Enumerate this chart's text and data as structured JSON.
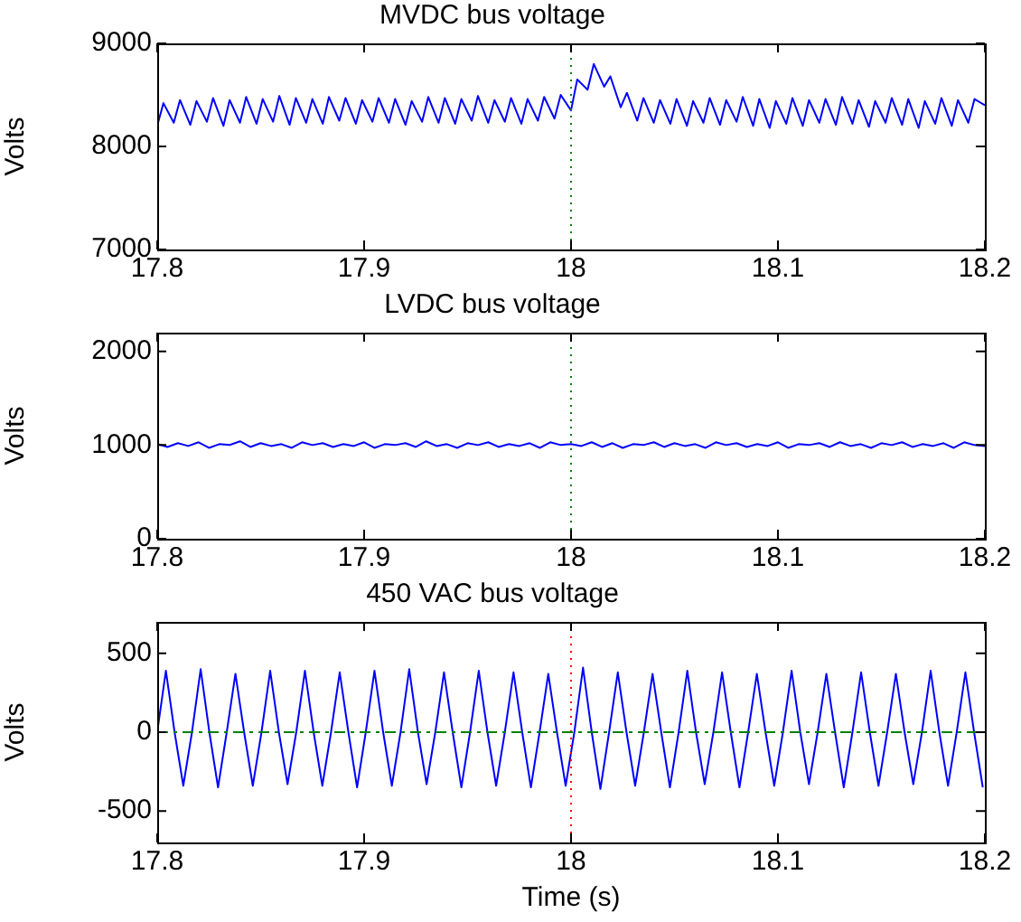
{
  "chart_data": [
    {
      "type": "line",
      "title": "MVDC bus voltage",
      "ylabel": "Volts",
      "xlim": [
        17.8,
        18.2
      ],
      "xticks": [
        17.8,
        17.9,
        18,
        18.1,
        18.2
      ],
      "ylim": [
        7000,
        9000
      ],
      "yticks": [
        7000,
        8000,
        9000
      ],
      "grid": false,
      "legend": false,
      "marker": "none",
      "line_style": "solid",
      "ref_lines": [
        {
          "axis": "x",
          "value": 18,
          "color": "#008000",
          "line_style": "dotted"
        }
      ],
      "series": [
        {
          "color": "#0000ff",
          "x": [
            17.8,
            17.803,
            17.808,
            17.811,
            17.816,
            17.819,
            17.824,
            17.827,
            17.832,
            17.835,
            17.84,
            17.843,
            17.848,
            17.851,
            17.856,
            17.859,
            17.864,
            17.867,
            17.872,
            17.875,
            17.88,
            17.883,
            17.888,
            17.891,
            17.896,
            17.899,
            17.904,
            17.907,
            17.912,
            17.915,
            17.92,
            17.923,
            17.928,
            17.931,
            17.936,
            17.939,
            17.944,
            17.947,
            17.952,
            17.955,
            17.96,
            17.963,
            17.968,
            17.971,
            17.976,
            17.979,
            17.984,
            17.987,
            17.992,
            17.995,
            18,
            18.003,
            18.008,
            18.011,
            18.016,
            18.019,
            18.024,
            18.027,
            18.032,
            18.035,
            18.04,
            18.043,
            18.048,
            18.051,
            18.056,
            18.059,
            18.064,
            18.067,
            18.072,
            18.075,
            18.08,
            18.083,
            18.088,
            18.091,
            18.096,
            18.099,
            18.104,
            18.107,
            18.112,
            18.115,
            18.12,
            18.123,
            18.128,
            18.131,
            18.136,
            18.139,
            18.144,
            18.147,
            18.152,
            18.155,
            18.16,
            18.163,
            18.168,
            18.171,
            18.176,
            18.179,
            18.184,
            18.187,
            18.192,
            18.195,
            18.2
          ],
          "values": [
            8200,
            8420,
            8230,
            8450,
            8210,
            8440,
            8240,
            8470,
            8200,
            8450,
            8230,
            8480,
            8220,
            8460,
            8240,
            8490,
            8210,
            8470,
            8230,
            8460,
            8220,
            8480,
            8250,
            8470,
            8220,
            8450,
            8240,
            8470,
            8230,
            8460,
            8210,
            8440,
            8240,
            8480,
            8230,
            8470,
            8220,
            8460,
            8250,
            8490,
            8230,
            8450,
            8240,
            8470,
            8220,
            8460,
            8250,
            8480,
            8270,
            8500,
            8350,
            8650,
            8550,
            8800,
            8580,
            8680,
            8380,
            8520,
            8250,
            8470,
            8230,
            8450,
            8220,
            8460,
            8200,
            8440,
            8230,
            8470,
            8210,
            8450,
            8240,
            8480,
            8200,
            8460,
            8180,
            8440,
            8220,
            8470,
            8200,
            8450,
            8230,
            8460,
            8210,
            8480,
            8220,
            8450,
            8190,
            8440,
            8230,
            8470,
            8210,
            8460,
            8180,
            8440,
            8220,
            8470,
            8200,
            8450,
            8230,
            8460,
            8400
          ]
        }
      ]
    },
    {
      "type": "line",
      "title": "LVDC bus voltage",
      "ylabel": "Volts",
      "xlim": [
        17.8,
        18.2
      ],
      "xticks": [
        17.8,
        17.9,
        18,
        18.1,
        18.2
      ],
      "ylim": [
        0,
        2200
      ],
      "yticks": [
        0,
        1000,
        2000
      ],
      "grid": false,
      "legend": false,
      "marker": "none",
      "line_style": "solid",
      "ref_lines": [
        {
          "axis": "x",
          "value": 18,
          "color": "#008000",
          "line_style": "dotted"
        }
      ],
      "series": [
        {
          "color": "#0000ff",
          "x": [
            17.8,
            17.805,
            17.81,
            17.815,
            17.82,
            17.825,
            17.83,
            17.835,
            17.84,
            17.845,
            17.85,
            17.855,
            17.86,
            17.865,
            17.87,
            17.875,
            17.88,
            17.885,
            17.89,
            17.895,
            17.9,
            17.905,
            17.91,
            17.915,
            17.92,
            17.925,
            17.93,
            17.935,
            17.94,
            17.945,
            17.95,
            17.955,
            17.96,
            17.965,
            17.97,
            17.975,
            17.98,
            17.985,
            17.99,
            17.995,
            18,
            18.005,
            18.01,
            18.015,
            18.02,
            18.025,
            18.03,
            18.035,
            18.04,
            18.045,
            18.05,
            18.055,
            18.06,
            18.065,
            18.07,
            18.075,
            18.08,
            18.085,
            18.09,
            18.095,
            18.1,
            18.105,
            18.11,
            18.115,
            18.12,
            18.125,
            18.13,
            18.135,
            18.14,
            18.145,
            18.15,
            18.155,
            18.16,
            18.165,
            18.17,
            18.175,
            18.18,
            18.185,
            18.19,
            18.195,
            18.2
          ],
          "values": [
            1010,
            980,
            1020,
            990,
            1030,
            970,
            1010,
            1000,
            1040,
            980,
            1020,
            990,
            1010,
            970,
            1030,
            1000,
            1020,
            980,
            1010,
            990,
            1030,
            970,
            1010,
            1000,
            1020,
            980,
            1040,
            990,
            1010,
            970,
            1020,
            1000,
            1030,
            980,
            1010,
            990,
            1020,
            970,
            1030,
            1000,
            1010,
            990,
            1030,
            980,
            1020,
            970,
            1010,
            1000,
            1030,
            980,
            1020,
            990,
            1010,
            970,
            1030,
            1000,
            1020,
            980,
            1010,
            990,
            1030,
            970,
            1010,
            1000,
            1020,
            980,
            1030,
            990,
            1010,
            970,
            1020,
            1000,
            1030,
            980,
            1010,
            990,
            1020,
            970,
            1030,
            1000,
            990
          ]
        }
      ]
    },
    {
      "type": "line",
      "title": "450 VAC bus voltage",
      "xlabel": "Time (s)",
      "ylabel": "Volts",
      "xlim": [
        17.8,
        18.2
      ],
      "xticks": [
        17.8,
        17.9,
        18,
        18.1,
        18.2
      ],
      "ylim": [
        -700,
        700
      ],
      "yticks": [
        -500,
        0,
        500
      ],
      "grid": false,
      "legend": false,
      "marker": "none",
      "line_style": "solid",
      "ref_lines": [
        {
          "axis": "x",
          "value": 18,
          "color": "#ff0000",
          "line_style": "dotted"
        },
        {
          "axis": "y",
          "value": 0,
          "color": "#008000",
          "line_style": "dashed"
        }
      ],
      "series": [
        {
          "color": "#0000ff",
          "x": [
            17.8,
            17.8042,
            17.8084,
            17.8126,
            17.8168,
            17.821,
            17.8252,
            17.8294,
            17.8336,
            17.8378,
            17.842,
            17.8462,
            17.8504,
            17.8546,
            17.8588,
            17.863,
            17.8672,
            17.8714,
            17.8756,
            17.8798,
            17.884,
            17.8882,
            17.8924,
            17.8966,
            17.9008,
            17.905,
            17.9092,
            17.9134,
            17.9176,
            17.9218,
            17.926,
            17.9302,
            17.9344,
            17.9386,
            17.9428,
            17.947,
            17.9512,
            17.9554,
            17.9596,
            17.9638,
            17.968,
            17.9722,
            17.9764,
            17.9806,
            17.9848,
            17.989,
            17.9932,
            17.9974,
            18.0016,
            18.0058,
            18.01,
            18.0142,
            18.0184,
            18.0226,
            18.0268,
            18.031,
            18.0352,
            18.0394,
            18.0436,
            18.0478,
            18.052,
            18.0562,
            18.0604,
            18.0646,
            18.0688,
            18.073,
            18.0772,
            18.0814,
            18.0856,
            18.0898,
            18.094,
            18.0982,
            18.1024,
            18.1066,
            18.1108,
            18.115,
            18.1192,
            18.1234,
            18.1276,
            18.1318,
            18.136,
            18.1402,
            18.1444,
            18.1486,
            18.1528,
            18.157,
            18.1612,
            18.1654,
            18.1696,
            18.1738,
            18.178,
            18.1822,
            18.1864,
            18.1906,
            18.1948,
            18.199
          ],
          "values": [
            0,
            390,
            0,
            -340,
            0,
            400,
            0,
            -350,
            0,
            370,
            0,
            -340,
            0,
            390,
            0,
            -330,
            0,
            390,
            0,
            -340,
            0,
            380,
            0,
            -350,
            0,
            390,
            0,
            -340,
            0,
            400,
            0,
            -330,
            0,
            380,
            0,
            -350,
            0,
            390,
            0,
            -340,
            0,
            380,
            0,
            -350,
            0,
            370,
            0,
            -340,
            0,
            410,
            0,
            -360,
            0,
            380,
            0,
            -340,
            0,
            370,
            0,
            -350,
            0,
            390,
            0,
            -330,
            0,
            380,
            0,
            -350,
            0,
            370,
            0,
            -340,
            0,
            390,
            0,
            -330,
            0,
            370,
            0,
            -350,
            0,
            380,
            0,
            -340,
            0,
            370,
            0,
            -330,
            0,
            390,
            0,
            -340,
            0,
            380,
            0,
            -350
          ]
        }
      ]
    }
  ]
}
